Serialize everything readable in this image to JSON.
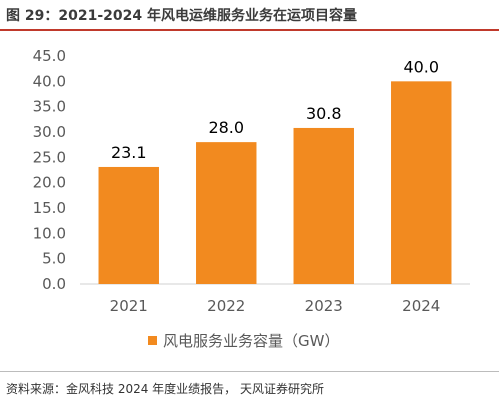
{
  "figure": {
    "title": "图 29：2021-2024 年风电运维服务业务在运项目容量",
    "source": "资料来源：金风科技 2024 年度业绩报告，  天风证券研究所"
  },
  "chart_data": {
    "type": "bar",
    "categories": [
      "2021",
      "2022",
      "2023",
      "2024"
    ],
    "series": [
      {
        "name": "风电服务业务容量（GW）",
        "values": [
          23.1,
          28.0,
          30.8,
          40.0
        ],
        "color": "#f28a1f"
      }
    ],
    "data_labels": [
      "23.1",
      "28.0",
      "30.8",
      "40.0"
    ],
    "yticks": [
      "0.0",
      "5.0",
      "10.0",
      "15.0",
      "20.0",
      "25.0",
      "30.0",
      "35.0",
      "40.0",
      "45.0"
    ],
    "ylim": [
      0,
      45
    ],
    "grid": false,
    "legend": "bottom",
    "title": "",
    "xlabel": "",
    "ylabel": ""
  }
}
